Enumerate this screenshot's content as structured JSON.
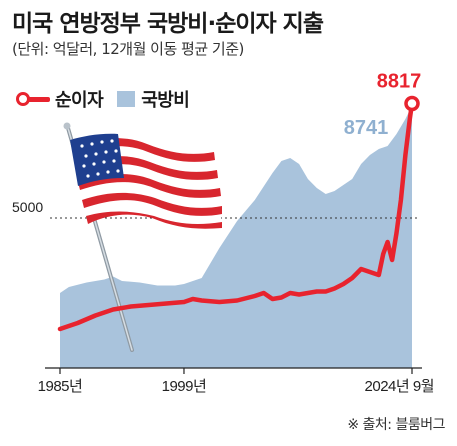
{
  "header": {
    "title": "미국 연방정부 국방비·순이자 지출",
    "subtitle": "(단위: 억달러, 12개월 이동 평균 기준)"
  },
  "legend": {
    "line_label": "순이자",
    "area_label": "국방비"
  },
  "source": "※ 출처: 블룸버그",
  "colors": {
    "line": "#e8232e",
    "area": "#a9c3dc",
    "area_label": "#8fb0d0"
  },
  "chart_data": {
    "type": "area",
    "x_range": [
      1985.0,
      2024.75
    ],
    "ylim": [
      0,
      9600
    ],
    "reference_line": {
      "value": 5000,
      "label": "5000"
    },
    "x_ticks": [
      {
        "x": 1985.0,
        "label": "1985년"
      },
      {
        "x": 1999.0,
        "label": "1999년"
      },
      {
        "x": 2024.75,
        "label": "2024년 9월"
      }
    ],
    "end_labels": {
      "line": "8817",
      "area": "8741"
    },
    "series": [
      {
        "name": "국방비",
        "type": "area",
        "points": [
          [
            1985.0,
            2500
          ],
          [
            1986.0,
            2700
          ],
          [
            1988.0,
            2850
          ],
          [
            1990.0,
            2950
          ],
          [
            1991.0,
            3050
          ],
          [
            1992.0,
            2900
          ],
          [
            1994.0,
            2850
          ],
          [
            1996.0,
            2750
          ],
          [
            1998.0,
            2750
          ],
          [
            1999.0,
            2800
          ],
          [
            2001.0,
            3000
          ],
          [
            2003.0,
            4000
          ],
          [
            2005.0,
            4900
          ],
          [
            2007.0,
            5600
          ],
          [
            2009.0,
            6500
          ],
          [
            2010.0,
            6900
          ],
          [
            2011.0,
            7000
          ],
          [
            2012.0,
            6800
          ],
          [
            2013.0,
            6300
          ],
          [
            2014.0,
            6000
          ],
          [
            2015.0,
            5800
          ],
          [
            2016.0,
            5900
          ],
          [
            2018.0,
            6300
          ],
          [
            2019.0,
            6800
          ],
          [
            2020.0,
            7100
          ],
          [
            2021.0,
            7300
          ],
          [
            2022.0,
            7400
          ],
          [
            2023.0,
            7800
          ],
          [
            2024.0,
            8300
          ],
          [
            2024.75,
            8741
          ]
        ]
      },
      {
        "name": "순이자",
        "type": "line",
        "points": [
          [
            1985.0,
            1300
          ],
          [
            1987.0,
            1500
          ],
          [
            1989.0,
            1750
          ],
          [
            1991.0,
            1950
          ],
          [
            1993.0,
            2050
          ],
          [
            1995.0,
            2100
          ],
          [
            1997.0,
            2150
          ],
          [
            1999.0,
            2200
          ],
          [
            2000.0,
            2300
          ],
          [
            2001.0,
            2250
          ],
          [
            2003.0,
            2200
          ],
          [
            2005.0,
            2250
          ],
          [
            2007.0,
            2400
          ],
          [
            2008.0,
            2500
          ],
          [
            2009.0,
            2300
          ],
          [
            2010.0,
            2350
          ],
          [
            2011.0,
            2500
          ],
          [
            2012.0,
            2450
          ],
          [
            2013.0,
            2500
          ],
          [
            2014.0,
            2550
          ],
          [
            2015.0,
            2550
          ],
          [
            2016.0,
            2650
          ],
          [
            2017.0,
            2800
          ],
          [
            2018.0,
            3000
          ],
          [
            2019.0,
            3300
          ],
          [
            2020.0,
            3200
          ],
          [
            2021.0,
            3100
          ],
          [
            2021.5,
            3800
          ],
          [
            2022.0,
            4200
          ],
          [
            2022.5,
            3600
          ],
          [
            2023.0,
            4500
          ],
          [
            2023.5,
            5600
          ],
          [
            2024.0,
            7100
          ],
          [
            2024.5,
            8300
          ],
          [
            2024.75,
            8817
          ]
        ]
      }
    ]
  }
}
